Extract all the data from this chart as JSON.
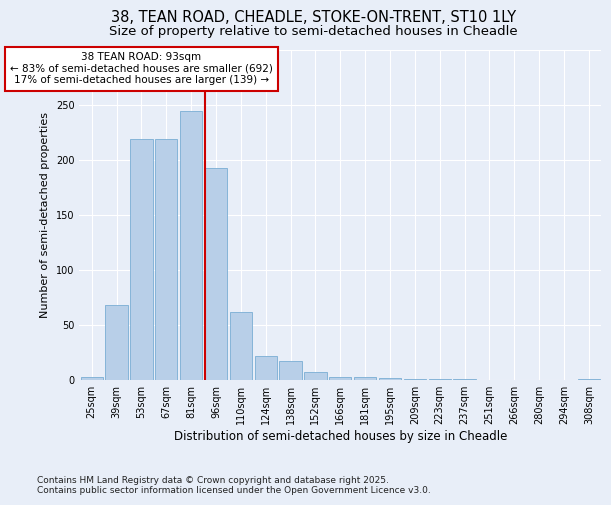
{
  "title1": "38, TEAN ROAD, CHEADLE, STOKE-ON-TRENT, ST10 1LY",
  "title2": "Size of property relative to semi-detached houses in Cheadle",
  "xlabel": "Distribution of semi-detached houses by size in Cheadle",
  "ylabel": "Number of semi-detached properties",
  "bar_labels": [
    "25sqm",
    "39sqm",
    "53sqm",
    "67sqm",
    "81sqm",
    "96sqm",
    "110sqm",
    "124sqm",
    "138sqm",
    "152sqm",
    "166sqm",
    "181sqm",
    "195sqm",
    "209sqm",
    "223sqm",
    "237sqm",
    "251sqm",
    "266sqm",
    "280sqm",
    "294sqm",
    "308sqm"
  ],
  "bar_values": [
    3,
    68,
    219,
    219,
    245,
    193,
    62,
    22,
    17,
    7,
    3,
    3,
    2,
    1,
    1,
    1,
    0,
    0,
    0,
    0,
    1
  ],
  "bar_color": "#b8cfe8",
  "bar_edge_color": "#7aadd4",
  "vline_index": 5,
  "vline_color": "#cc0000",
  "annotation_title": "38 TEAN ROAD: 93sqm",
  "annotation_line1": "← 83% of semi-detached houses are smaller (692)",
  "annotation_line2": "17% of semi-detached houses are larger (139) →",
  "annotation_box_edgecolor": "#cc0000",
  "ylim": [
    0,
    300
  ],
  "yticks": [
    0,
    50,
    100,
    150,
    200,
    250,
    300
  ],
  "footer1": "Contains HM Land Registry data © Crown copyright and database right 2025.",
  "footer2": "Contains public sector information licensed under the Open Government Licence v3.0.",
  "bg_color": "#e8eef8",
  "grid_color": "#ffffff",
  "title1_fontsize": 10.5,
  "title2_fontsize": 9.5,
  "xlabel_fontsize": 8.5,
  "ylabel_fontsize": 8,
  "tick_fontsize": 7,
  "annot_fontsize": 7.5,
  "footer_fontsize": 6.5
}
